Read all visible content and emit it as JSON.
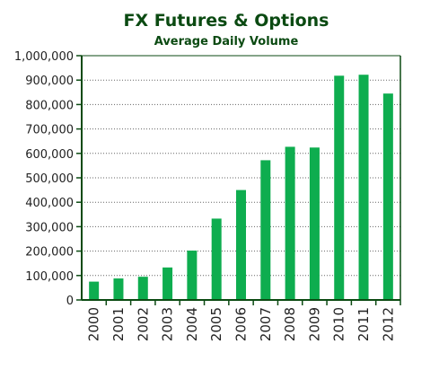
{
  "chart_data": {
    "type": "bar",
    "title": "FX Futures & Options",
    "subtitle": "Average Daily Volume",
    "categories": [
      "2000",
      "2001",
      "2002",
      "2003",
      "2004",
      "2005",
      "2006",
      "2007",
      "2008",
      "2009",
      "2010",
      "2011",
      "2012"
    ],
    "values": [
      75000,
      88000,
      95000,
      133000,
      202000,
      333000,
      450000,
      572000,
      627000,
      624000,
      918000,
      922000,
      845000
    ],
    "ylim": [
      0,
      1000000
    ],
    "yticks": [
      0,
      100000,
      200000,
      300000,
      400000,
      500000,
      600000,
      700000,
      800000,
      900000,
      1000000
    ],
    "ytick_labels": [
      "0",
      "100,000",
      "200,000",
      "300,000",
      "400,000",
      "500,000",
      "600,000",
      "700,000",
      "800,000",
      "900,000",
      "1,000,000"
    ],
    "grid": true,
    "colors": {
      "bar": "#0ead4f",
      "axis": "#0b4a12",
      "grid": "#666666",
      "title": "#0b4a12"
    }
  }
}
